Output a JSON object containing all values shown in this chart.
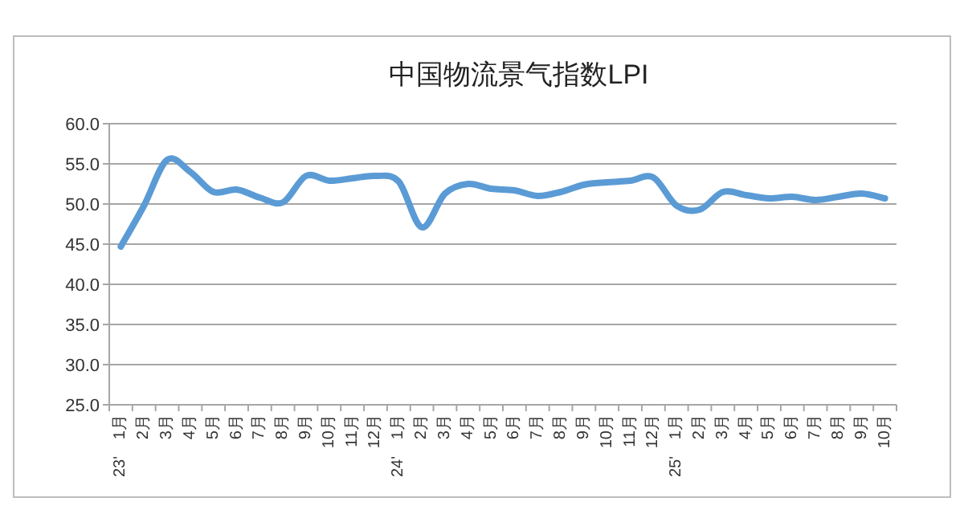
{
  "chart_data": {
    "type": "line",
    "title": "中国物流景气指数LPI",
    "categories": [
      "1月",
      "2月",
      "3月",
      "4月",
      "5月",
      "6月",
      "7月",
      "8月",
      "9月",
      "10月",
      "11月",
      "12月",
      "1月",
      "2月",
      "3月",
      "4月",
      "5月",
      "6月",
      "7月",
      "8月",
      "9月",
      "10月",
      "11月",
      "12月",
      "1月",
      "2月",
      "3月",
      "4月",
      "5月",
      "6月",
      "7月",
      "8月",
      "9月",
      "10月"
    ],
    "series": [
      {
        "color": "#5b9bd5",
        "values": [
          44.7,
          49.8,
          55.5,
          54.0,
          51.5,
          51.8,
          50.8,
          50.2,
          53.5,
          52.9,
          53.2,
          53.5,
          52.8,
          47.1,
          51.3,
          52.5,
          51.9,
          51.7,
          51.0,
          51.5,
          52.4,
          52.7,
          52.9,
          53.3,
          49.8,
          49.3,
          51.5,
          51.1,
          50.7,
          50.9,
          50.5,
          50.9,
          51.3,
          50.7
        ]
      }
    ],
    "ylim": [
      25,
      60
    ],
    "yticks": [
      {
        "value": 25,
        "label": "25.0"
      },
      {
        "value": 30,
        "label": "30.0"
      },
      {
        "value": 35,
        "label": "35.0"
      },
      {
        "value": 40,
        "label": "40.0"
      },
      {
        "value": 45,
        "label": "45.0"
      },
      {
        "value": 50,
        "label": "50.0"
      },
      {
        "value": 55,
        "label": "55.0"
      },
      {
        "value": 60,
        "label": "60.0"
      }
    ],
    "grid": "y",
    "marker": "none",
    "line_style": "solid",
    "annotations": [
      "23'",
      "24'",
      "25'"
    ]
  }
}
